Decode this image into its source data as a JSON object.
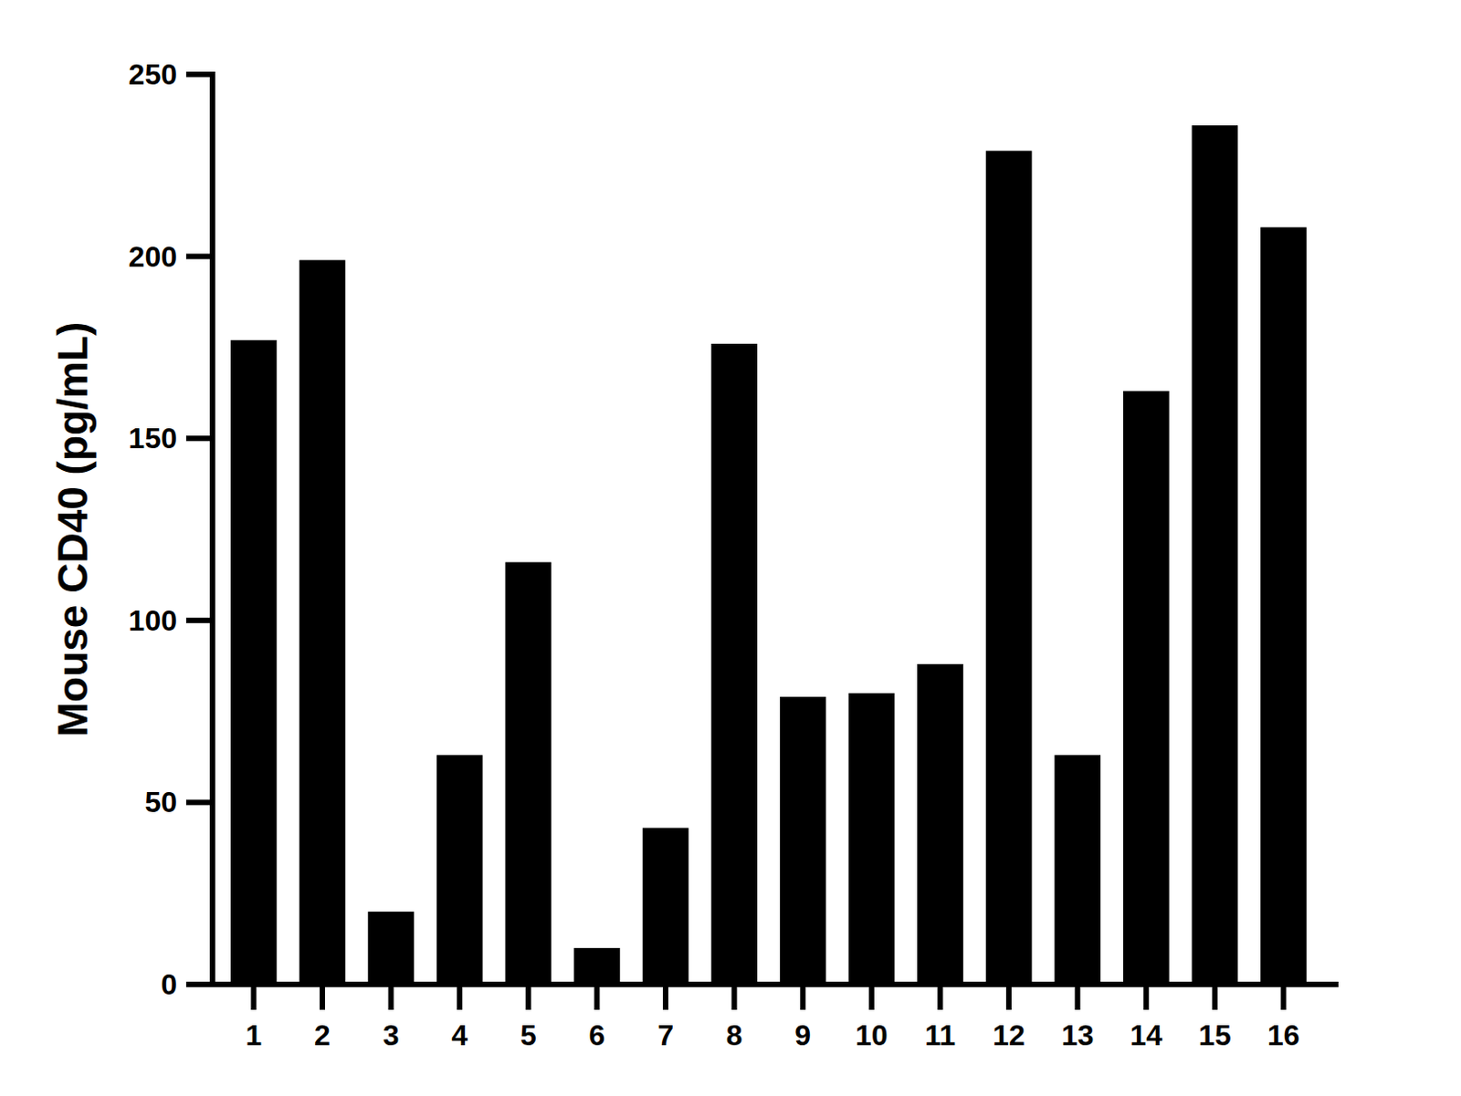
{
  "chart_data": {
    "type": "bar",
    "y_label": "Mouse CD40 (pg/mL)",
    "categories": [
      "1",
      "2",
      "3",
      "4",
      "5",
      "6",
      "7",
      "8",
      "9",
      "10",
      "11",
      "12",
      "13",
      "14",
      "15",
      "16"
    ],
    "values": [
      177,
      199,
      20,
      63,
      116,
      10,
      43,
      176,
      79,
      80,
      88,
      229,
      63,
      163,
      236,
      208
    ],
    "color": "#000000",
    "ylim": [
      0,
      250
    ],
    "yticks": [
      0,
      50,
      100,
      150,
      200,
      250
    ],
    "grid": false
  }
}
